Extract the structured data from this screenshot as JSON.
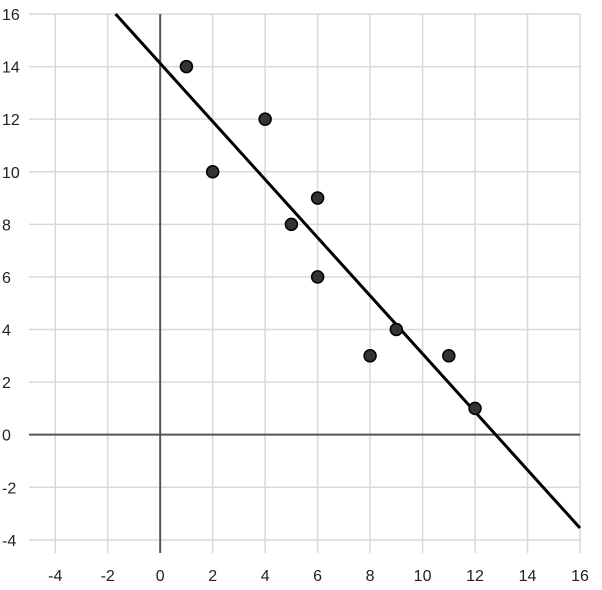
{
  "chart_data": {
    "type": "scatter",
    "xlim": [
      -5,
      16
    ],
    "ylim": [
      -4.5,
      16
    ],
    "grid": true,
    "x_ticks": [
      -4,
      -2,
      0,
      2,
      4,
      6,
      8,
      10,
      12,
      14,
      16
    ],
    "y_ticks": [
      -4,
      -2,
      0,
      2,
      4,
      6,
      8,
      10,
      12,
      14,
      16
    ],
    "x_tick_labels": [
      "-4",
      "-2",
      "0",
      "2",
      "4",
      "6",
      "8",
      "10",
      "12",
      "14",
      "16"
    ],
    "y_tick_labels": [
      "-4",
      "-2",
      "0",
      "2",
      "4",
      "6",
      "8",
      "10",
      "12",
      "14",
      "16"
    ],
    "series": [
      {
        "type": "scatter",
        "points": [
          {
            "x": 1,
            "y": 14
          },
          {
            "x": 2,
            "y": 10
          },
          {
            "x": 4,
            "y": 12
          },
          {
            "x": 5,
            "y": 8
          },
          {
            "x": 6,
            "y": 9
          },
          {
            "x": 6,
            "y": 6
          },
          {
            "x": 8,
            "y": 3
          },
          {
            "x": 9,
            "y": 4
          },
          {
            "x": 11,
            "y": 3
          },
          {
            "x": 12,
            "y": 1
          }
        ]
      },
      {
        "type": "line",
        "points": [
          {
            "x": -1.7,
            "y": 16
          },
          {
            "x": 16,
            "y": -3.55
          }
        ]
      }
    ],
    "colors": {
      "grid": "#d9d9d9",
      "axis": "#555555",
      "point_fill": "#333333",
      "point_stroke": "#000000",
      "line": "#000000"
    }
  }
}
